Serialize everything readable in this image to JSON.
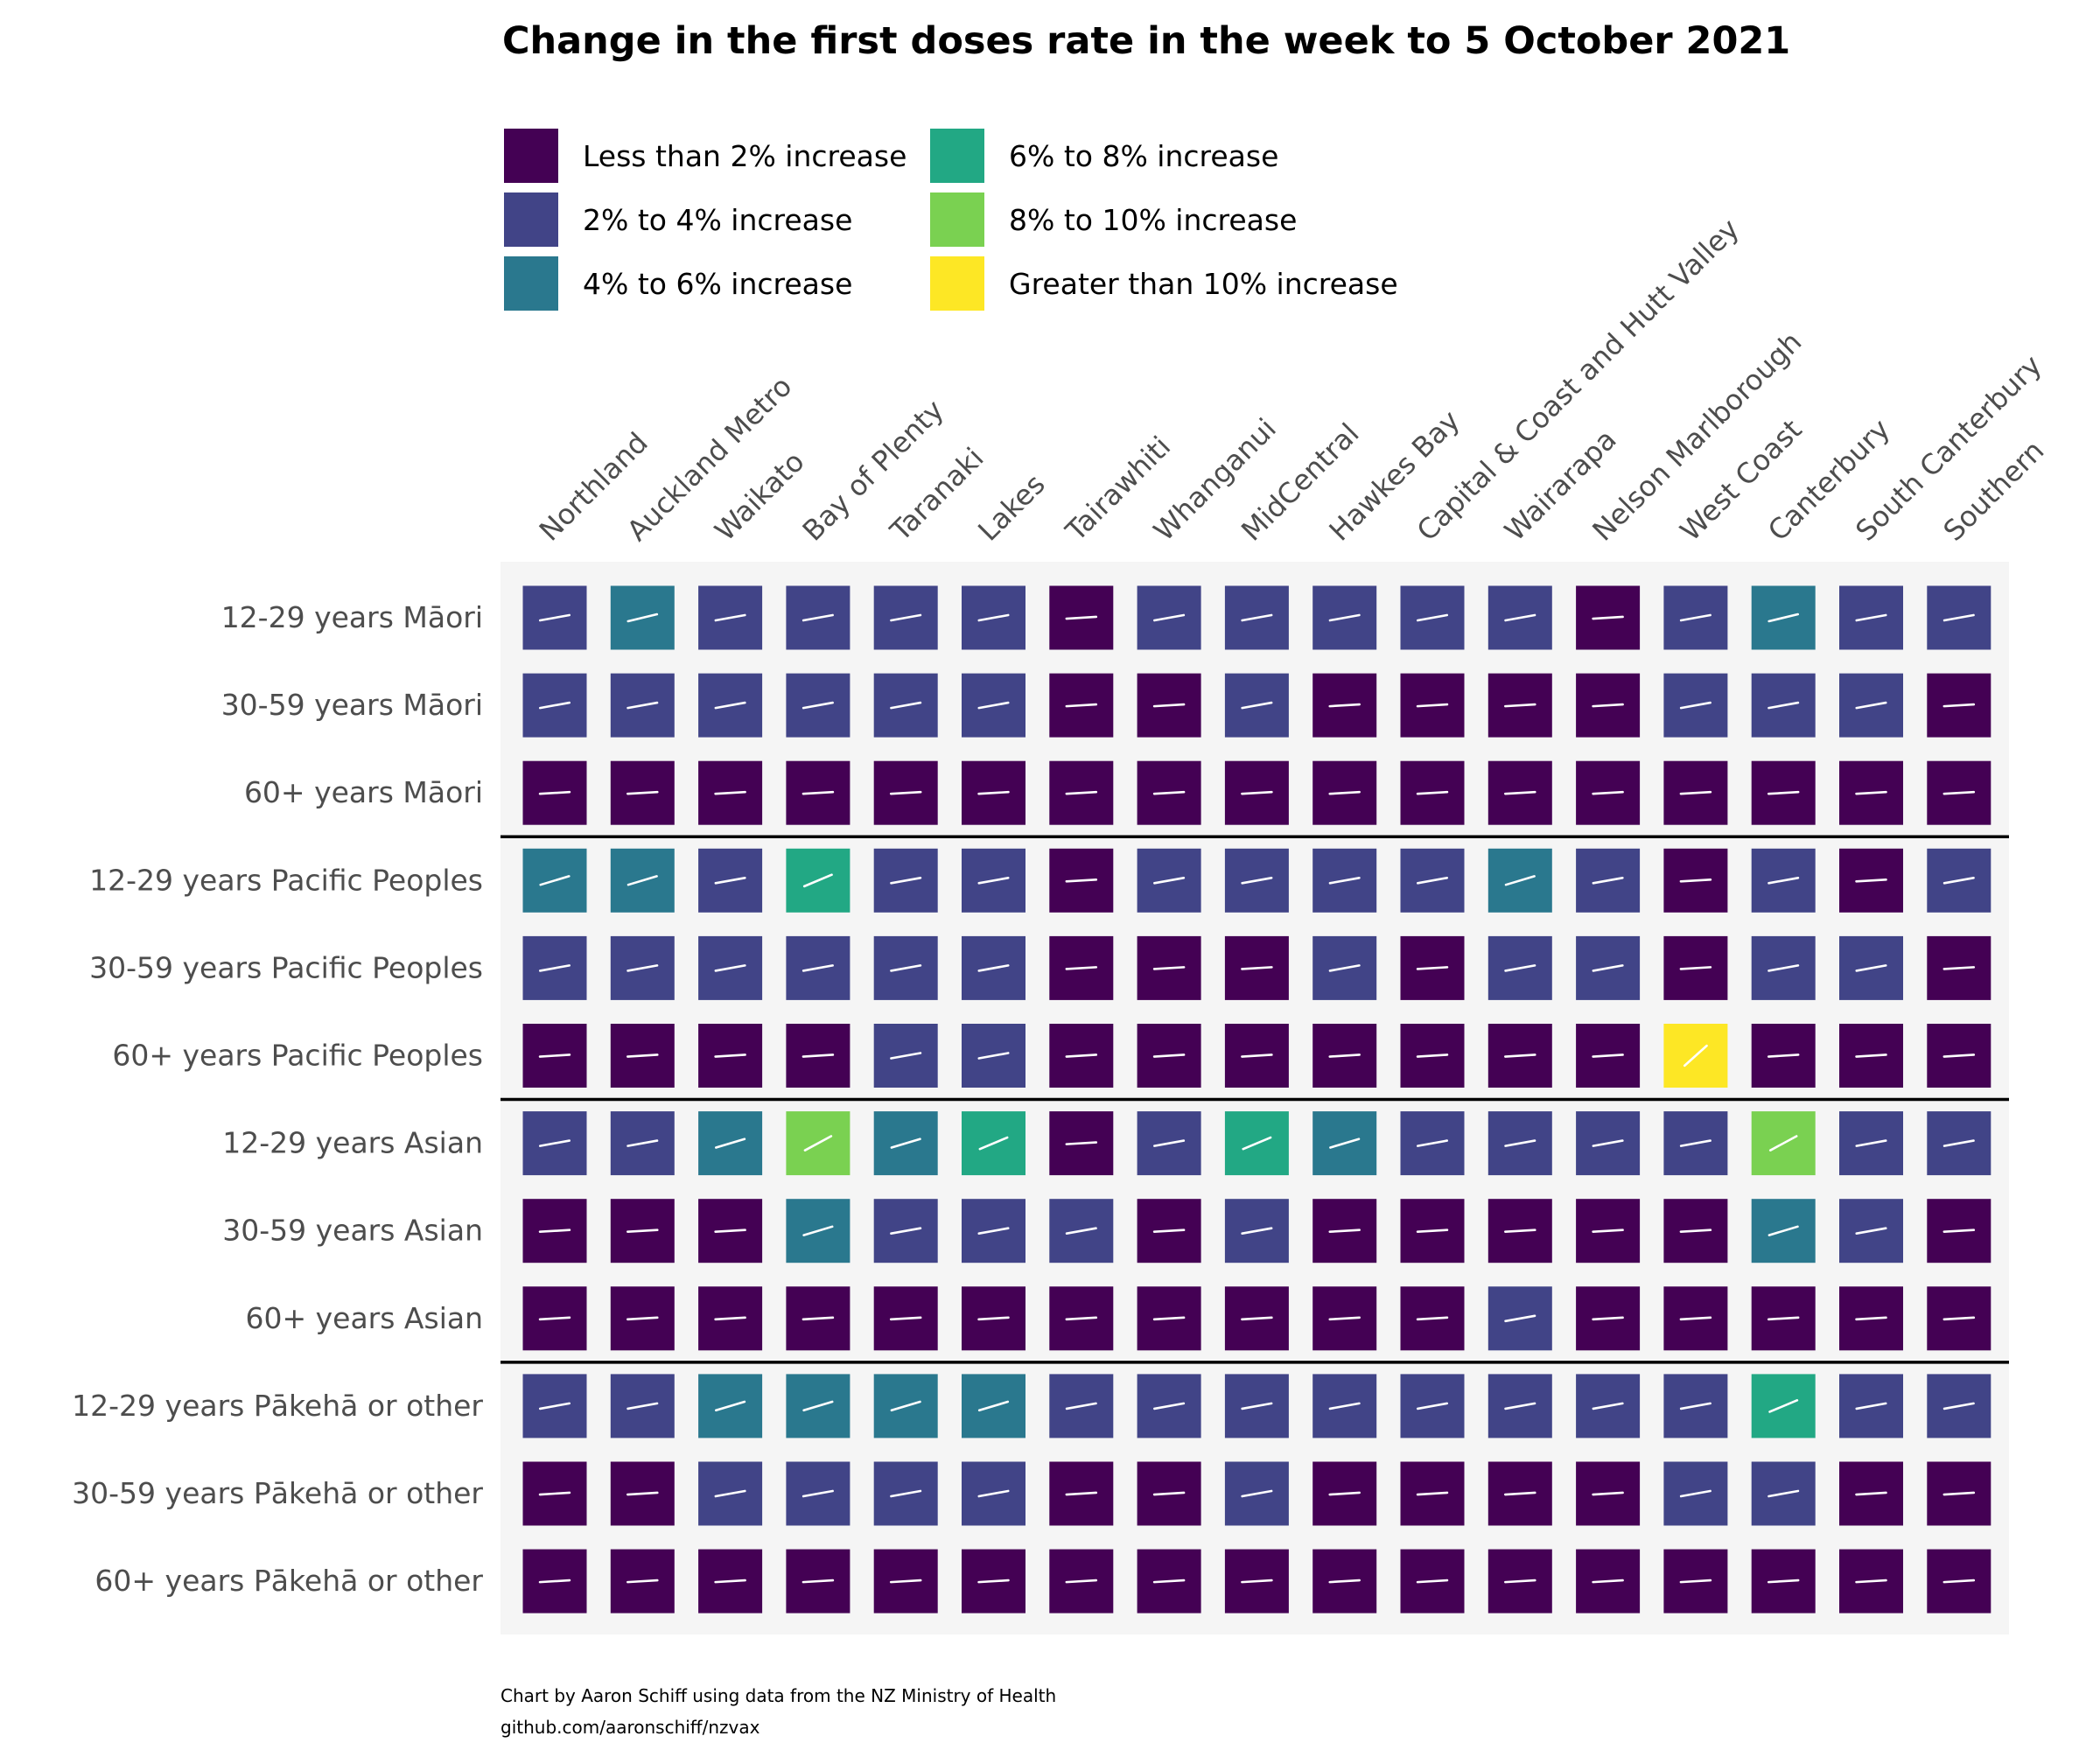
{
  "chart_data": {
    "type": "heatmap",
    "title": "Change in the first doses rate in the week to 5 October 2021",
    "legend": {
      "placement": "top",
      "items": [
        {
          "label": "Less than 2% increase",
          "color": "#440154"
        },
        {
          "label": "2% to 4% increase",
          "color": "#414487"
        },
        {
          "label": "4% to 6% increase",
          "color": "#2A788E"
        },
        {
          "label": "6% to 8% increase",
          "color": "#22A884"
        },
        {
          "label": "8% to 10% increase",
          "color": "#7AD151"
        },
        {
          "label": "Greater than 10% increase",
          "color": "#FDE725"
        }
      ]
    },
    "columns": [
      "Northland",
      "Auckland Metro",
      "Waikato",
      "Bay of Plenty",
      "Taranaki",
      "Lakes",
      "Tairawhiti",
      "Whanganui",
      "MidCentral",
      "Hawkes Bay",
      "Capital & Coast and Hutt Valley",
      "Wairarapa",
      "Nelson Marlborough",
      "West Coast",
      "Canterbury",
      "South Canterbury",
      "Southern"
    ],
    "rows": [
      "12-29 years Māori",
      "30-59 years Māori",
      "60+ years Māori",
      "12-29 years Pacific Peoples",
      "30-59 years Pacific Peoples",
      "60+ years Pacific Peoples",
      "12-29 years Asian",
      "30-59 years Asian",
      "60+ years Asian",
      "12-29 years Pākehā or other",
      "30-59 years Pākehā or other",
      "60+ years Pākehā or other"
    ],
    "group_separators_after_row": [
      2,
      5,
      8
    ],
    "category_index": [
      [
        1,
        2,
        1,
        1,
        1,
        1,
        0,
        1,
        1,
        1,
        1,
        1,
        0,
        1,
        2,
        1,
        1
      ],
      [
        1,
        1,
        1,
        1,
        1,
        1,
        0,
        0,
        1,
        0,
        0,
        0,
        0,
        1,
        1,
        1,
        0
      ],
      [
        0,
        0,
        0,
        0,
        0,
        0,
        0,
        0,
        0,
        0,
        0,
        0,
        0,
        0,
        0,
        0,
        0
      ],
      [
        2,
        2,
        1,
        3,
        1,
        1,
        0,
        1,
        1,
        1,
        1,
        2,
        1,
        0,
        1,
        0,
        1
      ],
      [
        1,
        1,
        1,
        1,
        1,
        1,
        0,
        0,
        0,
        1,
        0,
        1,
        1,
        0,
        1,
        1,
        0
      ],
      [
        0,
        0,
        0,
        0,
        1,
        1,
        0,
        0,
        0,
        0,
        0,
        0,
        0,
        5,
        0,
        0,
        0
      ],
      [
        1,
        1,
        2,
        4,
        2,
        3,
        0,
        1,
        3,
        2,
        1,
        1,
        1,
        1,
        4,
        1,
        1
      ],
      [
        0,
        0,
        0,
        2,
        1,
        1,
        1,
        0,
        1,
        0,
        0,
        0,
        0,
        0,
        2,
        1,
        0
      ],
      [
        0,
        0,
        0,
        0,
        0,
        0,
        0,
        0,
        0,
        0,
        0,
        1,
        0,
        0,
        0,
        0,
        0
      ],
      [
        1,
        1,
        2,
        2,
        2,
        2,
        1,
        1,
        1,
        1,
        1,
        1,
        1,
        1,
        3,
        1,
        1
      ],
      [
        0,
        0,
        1,
        1,
        1,
        1,
        0,
        0,
        1,
        0,
        0,
        0,
        0,
        1,
        1,
        0,
        0
      ],
      [
        0,
        0,
        0,
        0,
        0,
        0,
        0,
        0,
        0,
        0,
        0,
        0,
        0,
        0,
        0,
        0,
        0
      ]
    ],
    "slope_percent": [
      [
        3,
        4,
        3,
        3,
        3,
        3,
        1,
        3,
        3,
        3,
        3,
        3,
        1,
        3,
        4,
        3,
        3
      ],
      [
        3,
        3,
        3,
        3,
        3,
        3,
        1,
        1,
        3,
        1,
        1,
        1,
        1,
        3,
        3,
        3,
        1
      ],
      [
        1,
        1,
        1,
        1,
        1,
        1,
        1,
        1,
        1,
        1,
        1,
        1,
        1,
        1,
        1,
        1,
        1
      ],
      [
        5,
        5,
        3,
        7,
        3,
        3,
        1,
        3,
        3,
        3,
        3,
        5,
        3,
        1,
        3,
        1,
        3
      ],
      [
        3,
        3,
        3,
        3,
        3,
        3,
        1,
        1,
        1,
        3,
        1,
        3,
        3,
        1,
        3,
        3,
        1
      ],
      [
        1,
        1,
        1,
        1,
        3,
        3,
        1,
        1,
        1,
        1,
        1,
        1,
        1,
        15,
        1,
        1,
        1
      ],
      [
        3,
        3,
        5,
        9,
        5,
        7,
        1,
        3,
        7,
        5,
        3,
        3,
        3,
        3,
        9,
        3,
        3
      ],
      [
        1,
        1,
        1,
        5,
        3,
        3,
        3,
        1,
        3,
        1,
        1,
        1,
        1,
        1,
        5,
        3,
        1
      ],
      [
        1,
        1,
        1,
        1,
        1,
        1,
        1,
        1,
        1,
        1,
        1,
        3,
        1,
        1,
        1,
        1,
        1
      ],
      [
        3,
        3,
        5,
        5,
        5,
        5,
        3,
        3,
        3,
        3,
        3,
        3,
        3,
        3,
        7,
        3,
        3
      ],
      [
        1,
        1,
        3,
        3,
        3,
        3,
        1,
        1,
        3,
        1,
        1,
        1,
        1,
        3,
        3,
        1,
        1
      ],
      [
        1,
        1,
        1,
        1,
        1,
        1,
        1,
        1,
        1,
        1,
        1,
        1,
        1,
        1,
        1,
        1,
        1
      ]
    ],
    "panel_background": "#F5F5F5",
    "caption_lines": [
      "Chart by Aaron Schiff using data from the NZ Ministry of Health",
      "github.com/aaronschiff/nzvax"
    ]
  }
}
